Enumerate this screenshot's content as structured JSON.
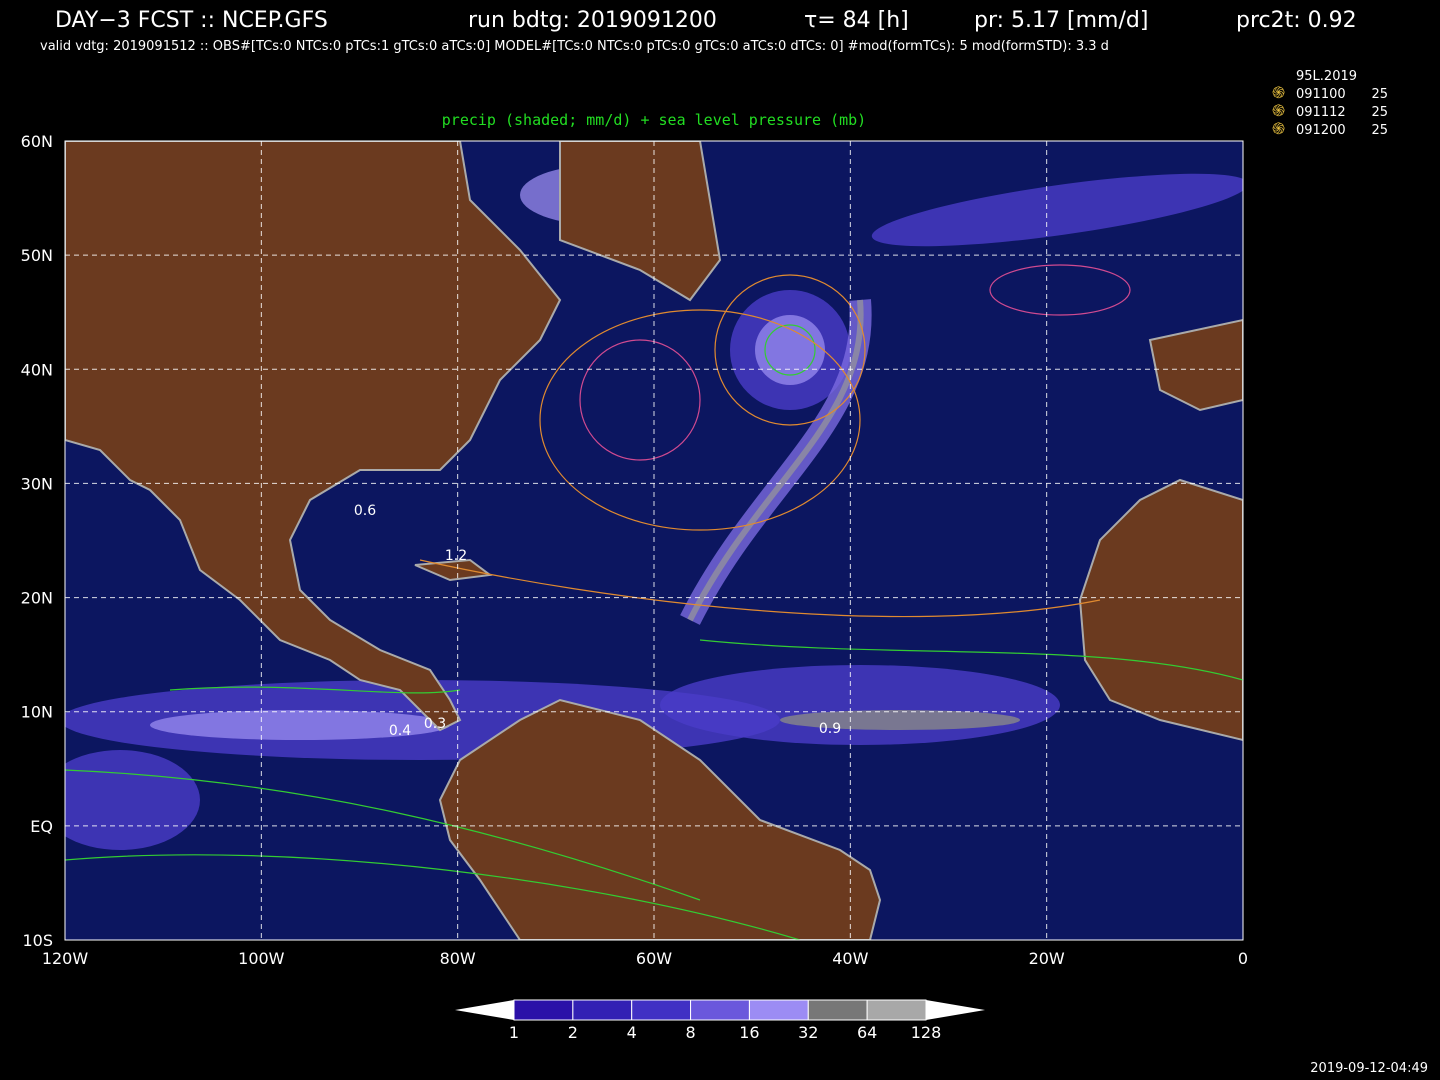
{
  "header": {
    "title": "DAY−3 FCST :: NCEP.GFS",
    "run": "run bdtg: 2019091200",
    "tau": "τ= 84 [h]",
    "pr": "pr: 5.17 [mm/d]",
    "prc2t": "prc2t: 0.92",
    "line2": "valid vdtg: 2019091512 :: OBS#[TCs:0 NTCs:0 pTCs:1 gTCs:0 aTCs:0]  MODEL#[TCs:0 NTCs:0 pTCs:0 gTCs:0 aTCs:0 dTCs: 0] #mod(formTCs): 5  mod(formSTD):  3.3 d"
  },
  "storm_legend": {
    "name": "95L.2019",
    "entries": [
      {
        "time": "091100",
        "value": 25
      },
      {
        "time": "091112",
        "value": 25
      },
      {
        "time": "091200",
        "value": 25
      }
    ]
  },
  "map": {
    "subtitle": "precip (shaded; mm/d) + sea level pressure (mb)",
    "lat_labels": [
      "60N",
      "50N",
      "40N",
      "30N",
      "20N",
      "10N",
      "EQ",
      "10S"
    ],
    "lon_labels": [
      "120W",
      "100W",
      "80W",
      "60W",
      "40W",
      "20W",
      "0"
    ],
    "contour_labels": [
      0.6,
      1.2,
      0.4,
      0.3,
      0.9
    ]
  },
  "colorbar": {
    "labels": [
      1,
      2,
      4,
      8,
      16,
      32,
      64,
      128
    ]
  },
  "timestamp": "2019-09-12-04:49"
}
